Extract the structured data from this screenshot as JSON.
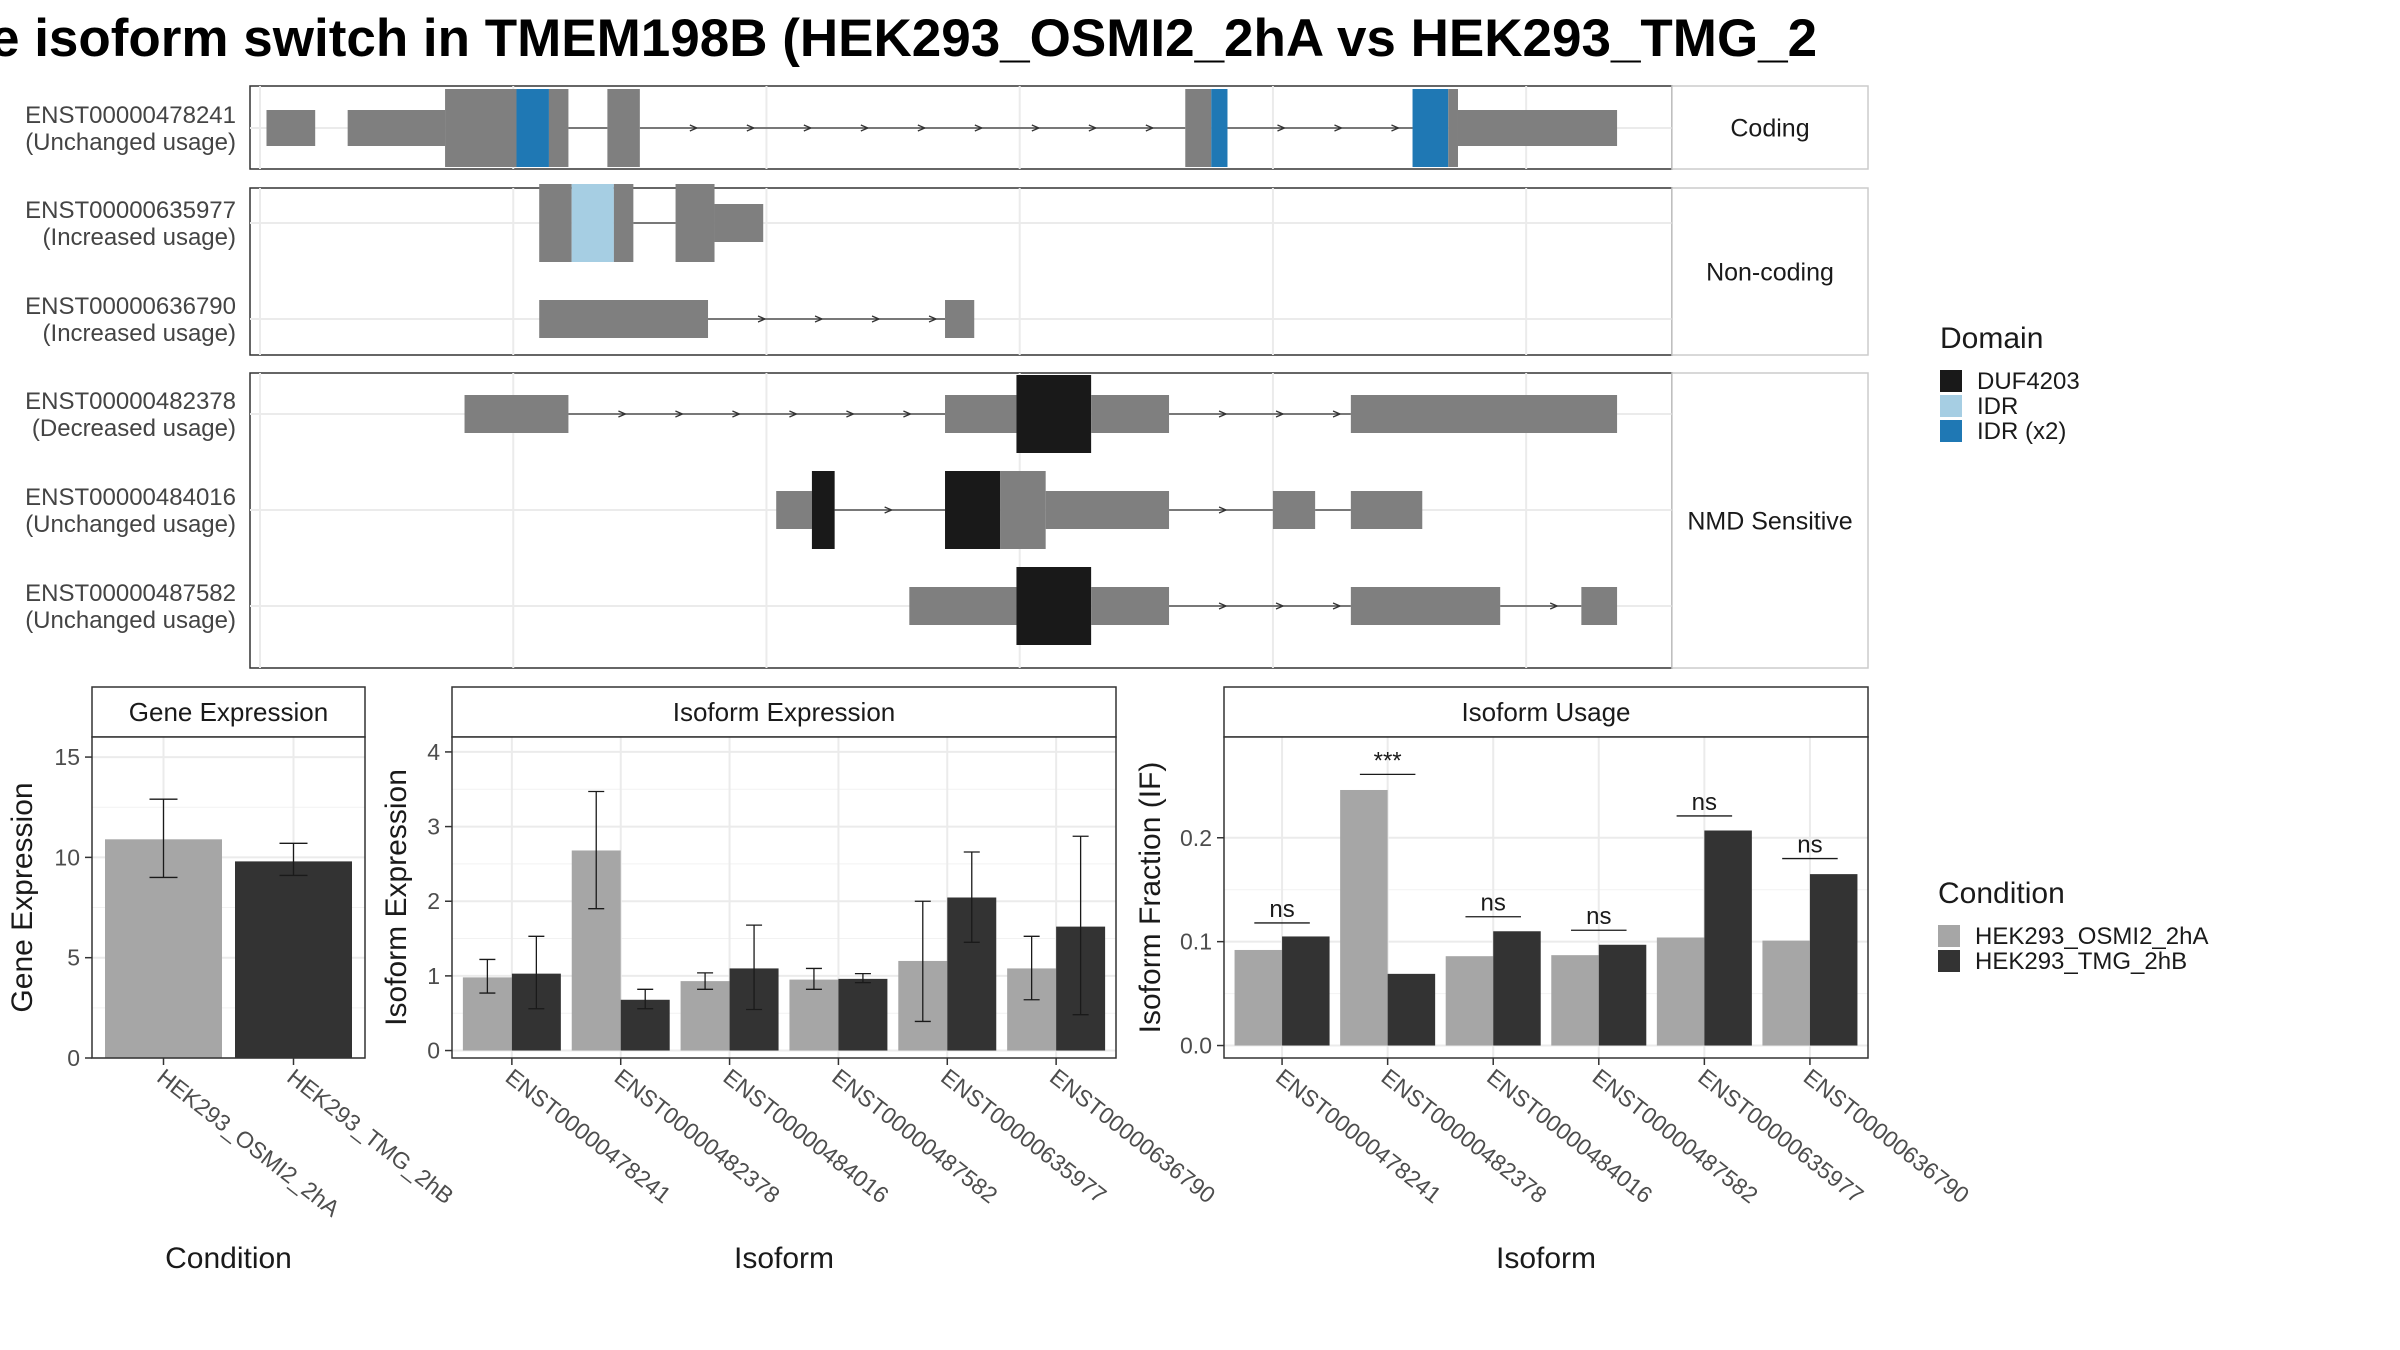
{
  "title": "e isoform switch in TMEM198B (HEK293_OSMI2_2hA vs HEK293_TMG_2",
  "colors": {
    "exon": "#7f7f7f",
    "DUF4203": "#191919",
    "IDR": "#a6cee3",
    "IDR_x2": "#1f78b4",
    "cond_A": "#a6a6a6",
    "cond_B": "#333333"
  },
  "structure": {
    "panels": [
      {
        "label": "Coding",
        "transcripts": [
          {
            "id": "ENST00000478241",
            "usage": "(Unchanged usage)",
            "exons": [
              [
                2,
                17,
                "s"
              ],
              [
                27,
                57,
                "s"
              ],
              [
                57,
                79,
                "L"
              ],
              [
                79,
                89,
                "L",
                "IDR_x2"
              ],
              [
                89,
                95,
                "L"
              ],
              [
                107,
                117,
                "L"
              ],
              [
                285,
                293,
                "L"
              ],
              [
                293,
                298,
                "L",
                "IDR_x2"
              ],
              [
                355,
                366,
                "L",
                "IDR_x2"
              ],
              [
                366,
                369,
                "L"
              ],
              [
                369,
                418,
                "s"
              ]
            ],
            "introns": [
              [
                95,
                107
              ],
              [
                117,
                285
              ],
              [
                298,
                355
              ]
            ]
          },
          {
            "id": "",
            "usage": "",
            "exons": [],
            "introns": []
          }
        ]
      },
      {
        "label": "Non-coding",
        "transcripts": [
          {
            "id": "ENST00000635977",
            "usage": "(Increased usage)",
            "exons": [
              [
                86,
                96,
                "L"
              ],
              [
                96,
                109,
                "L",
                "IDR"
              ],
              [
                109,
                115,
                "L"
              ],
              [
                128,
                140,
                "L"
              ],
              [
                140,
                155,
                "m"
              ]
            ],
            "introns": [
              [
                115,
                128
              ]
            ]
          },
          {
            "id": "ENST00000636790",
            "usage": "(Increased usage)",
            "exons": [
              [
                86,
                138,
                "s"
              ],
              [
                211,
                220,
                "s"
              ]
            ],
            "introns": [
              [
                138,
                211
              ]
            ]
          }
        ]
      },
      {
        "label": "NMD Sensitive",
        "transcripts": [
          {
            "id": "ENST00000482378",
            "usage": "(Decreased usage)",
            "exons": [
              [
                63,
                95,
                "s"
              ],
              [
                211,
                233,
                "s"
              ],
              [
                233,
                256,
                "L",
                "DUF4203"
              ],
              [
                256,
                280,
                "s"
              ],
              [
                336,
                418,
                "s"
              ]
            ],
            "introns": [
              [
                95,
                211
              ],
              [
                280,
                336
              ]
            ]
          },
          {
            "id": "ENST00000484016",
            "usage": "(Unchanged usage)",
            "exons": [
              [
                159,
                170,
                "s"
              ],
              [
                170,
                177,
                "L",
                "DUF4203"
              ],
              [
                211,
                228,
                "L",
                "DUF4203"
              ],
              [
                228,
                242,
                "L"
              ],
              [
                242,
                280,
                "s"
              ],
              [
                312,
                325,
                "s"
              ],
              [
                336,
                358,
                "s"
              ]
            ],
            "introns": [
              [
                177,
                211
              ],
              [
                280,
                312
              ],
              [
                325,
                336
              ]
            ]
          },
          {
            "id": "ENST00000487582",
            "usage": "(Unchanged usage)",
            "exons": [
              [
                200,
                233,
                "s"
              ],
              [
                233,
                256,
                "L",
                "DUF4203"
              ],
              [
                256,
                280,
                "s"
              ],
              [
                336,
                382,
                "s"
              ],
              [
                407,
                418,
                "s"
              ]
            ],
            "introns": [
              [
                280,
                336
              ],
              [
                382,
                407
              ]
            ]
          }
        ]
      }
    ],
    "domain_legend": {
      "title": "Domain",
      "items": [
        {
          "label": "DUF4203",
          "key": "DUF4203"
        },
        {
          "label": "IDR",
          "key": "IDR"
        },
        {
          "label": "IDR (x2)",
          "key": "IDR_x2"
        }
      ]
    }
  },
  "condition_legend": {
    "title": "Condition",
    "items": [
      {
        "label": "HEK293_OSMI2_2hA",
        "key": "cond_A"
      },
      {
        "label": "HEK293_TMG_2hB",
        "key": "cond_B"
      }
    ]
  },
  "chart_data": [
    {
      "type": "bar",
      "title": "Gene Expression",
      "xlabel": "Condition",
      "ylabel": "Gene Expression",
      "ylim": [
        0,
        16
      ],
      "yticks": [
        0,
        5,
        10,
        15
      ],
      "categories": [
        "HEK293_OSMI2_2hA",
        "HEK293_TMG_2hB"
      ],
      "values": [
        10.9,
        9.8
      ],
      "errors": [
        [
          9.0,
          12.9
        ],
        [
          9.1,
          10.7
        ]
      ]
    },
    {
      "type": "bar",
      "title": "Isoform Expression",
      "xlabel": "Isoform",
      "ylabel": "Isoform Expression",
      "ylim": [
        -0.1,
        4.2
      ],
      "yticks": [
        0,
        1,
        2,
        3,
        4
      ],
      "categories": [
        "ENST00000478241",
        "ENST00000482378",
        "ENST00000484016",
        "ENST00000487582",
        "ENST00000635977",
        "ENST00000636790"
      ],
      "series": [
        {
          "name": "HEK293_OSMI2_2hA",
          "values": [
            0.98,
            2.68,
            0.93,
            0.95,
            1.2,
            1.1
          ],
          "errors": [
            [
              0.77,
              1.22
            ],
            [
              1.9,
              3.47
            ],
            [
              0.82,
              1.04
            ],
            [
              0.82,
              1.1
            ],
            [
              0.39,
              2.0
            ],
            [
              0.68,
              1.53
            ]
          ]
        },
        {
          "name": "HEK293_TMG_2hB",
          "values": [
            1.03,
            0.68,
            1.1,
            0.96,
            2.05,
            1.66
          ],
          "errors": [
            [
              0.56,
              1.53
            ],
            [
              0.56,
              0.82
            ],
            [
              0.55,
              1.68
            ],
            [
              0.91,
              1.03
            ],
            [
              1.45,
              2.66
            ],
            [
              0.48,
              2.87
            ]
          ]
        }
      ]
    },
    {
      "type": "bar",
      "title": "Isoform Usage",
      "xlabel": "Isoform",
      "ylabel": "Isoform Fraction (IF)",
      "ylim": [
        -0.012,
        0.297
      ],
      "yticks": [
        "0.0",
        "0.1",
        "0.2"
      ],
      "ytick_values": [
        0,
        0.1,
        0.2
      ],
      "categories": [
        "ENST00000478241",
        "ENST00000482378",
        "ENST00000484016",
        "ENST00000487582",
        "ENST00000635977",
        "ENST00000636790"
      ],
      "series": [
        {
          "name": "HEK293_OSMI2_2hA",
          "values": [
            0.092,
            0.246,
            0.086,
            0.087,
            0.104,
            0.101
          ]
        },
        {
          "name": "HEK293_TMG_2hB",
          "values": [
            0.105,
            0.069,
            0.11,
            0.097,
            0.207,
            0.165
          ]
        }
      ],
      "annotations": [
        "ns",
        "***",
        "ns",
        "ns",
        "ns",
        "ns"
      ],
      "annotation_y": [
        0.118,
        0.261,
        0.124,
        0.111,
        0.221,
        0.18
      ]
    }
  ]
}
